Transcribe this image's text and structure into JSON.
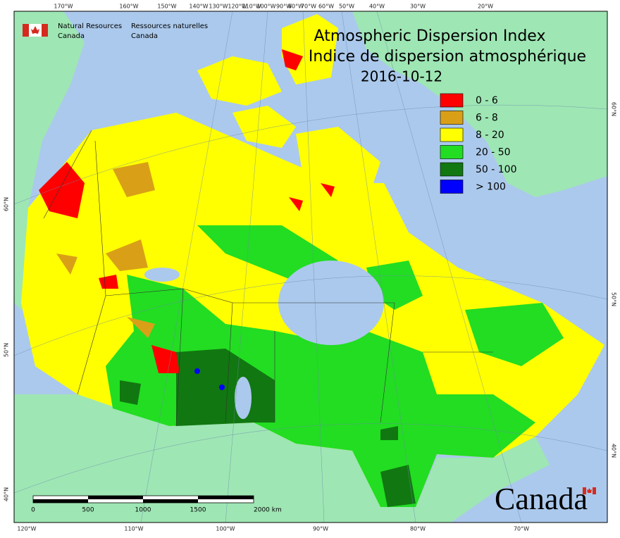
{
  "logo": {
    "en": [
      "Natural Resources",
      "Canada"
    ],
    "fr": [
      "Ressources naturelles",
      "Canada"
    ]
  },
  "title": [
    "Atmospheric Dispersion Index",
    "Indice de dispersion atmosphérique",
    "2016-10-12"
  ],
  "legend": [
    {
      "label": "0 - 6",
      "color": "#ff0000"
    },
    {
      "label": "6 - 8",
      "color": "#d9a017"
    },
    {
      "label": "8 - 20",
      "color": "#ffff00"
    },
    {
      "label": "20 - 50",
      "color": "#22dd22"
    },
    {
      "label": "50 - 100",
      "color": "#117711"
    },
    {
      "label": "> 100",
      "color": "#0000ff"
    }
  ],
  "graticule": {
    "top": [
      "170°W",
      "160°W",
      "150°W",
      "140°W",
      "130°W",
      "120°W",
      "110°W",
      "100°W",
      "90°W",
      "80°W",
      "70°W",
      "60°W",
      "50°W",
      "40°W",
      "30°W",
      "20°W"
    ],
    "bottom": [
      "120°W",
      "110°W",
      "100°W",
      "90°W",
      "80°W",
      "70°W"
    ],
    "left": [
      "60°N",
      "50°N",
      "40°N"
    ],
    "right": [
      "60°N",
      "50°N",
      "40°N"
    ]
  },
  "scale_bar": [
    "0",
    "500",
    "1000",
    "1500",
    "2000 km"
  ],
  "wordmark": "Canada"
}
